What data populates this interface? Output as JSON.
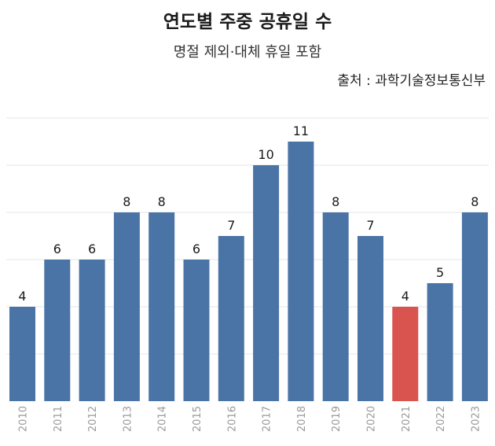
{
  "title": "연도별 주중 공휴일 수",
  "subtitle": "명절 제외·대체 휴일 포함",
  "source": "출처 : 과학기술정보통신부",
  "colors": {
    "bar": "#4a74a6",
    "highlight": "#d9534f",
    "grid": "#e6e6e6"
  },
  "chart_data": {
    "type": "bar",
    "title": "연도별 주중 공휴일 수",
    "subtitle": "명절 제외·대체 휴일 포함",
    "xlabel": "",
    "ylabel": "",
    "categories": [
      "2010",
      "2011",
      "2012",
      "2013",
      "2014",
      "2015",
      "2016",
      "2017",
      "2018",
      "2019",
      "2020",
      "2021",
      "2022",
      "2023"
    ],
    "values": [
      4,
      6,
      6,
      8,
      8,
      6,
      7,
      10,
      11,
      8,
      7,
      4,
      5,
      8
    ],
    "highlight_category": "2021",
    "ylim": [
      0,
      12
    ],
    "grid": true
  }
}
